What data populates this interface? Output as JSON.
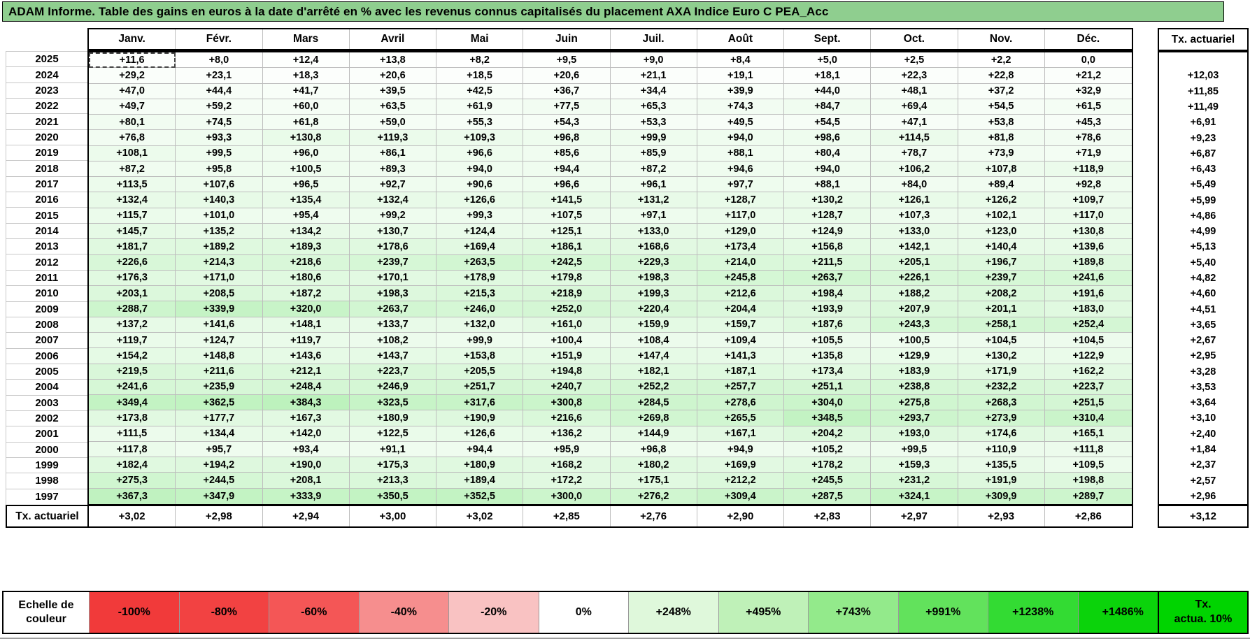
{
  "title": "ADAM Informe. Table des gains en euros à la date d'arrêté en % avec les revenus connus capitalisés du placement AXA Indice Euro C PEA_Acc",
  "colors": {
    "title_bg": "#8FCE8F",
    "grid_line": "#BDBDBD",
    "cell_scale_max_green": "#00CC00",
    "legend_tx_bg": "#00D400"
  },
  "table": {
    "month_headers": [
      "Janv.",
      "Févr.",
      "Mars",
      "Avril",
      "Mai",
      "Juin",
      "Juil.",
      "Août",
      "Sept.",
      "Oct.",
      "Nov.",
      "Déc."
    ],
    "tx_header": "Tx. actuariel",
    "footer_label": "Tx. actuariel",
    "scale_max_value": 1486,
    "selected_cell": {
      "year": "2025",
      "month": "Janv."
    },
    "rows": [
      {
        "year": "2025",
        "values": [
          "+11,6",
          "+8,0",
          "+12,4",
          "+13,8",
          "+8,2",
          "+9,5",
          "+9,0",
          "+8,4",
          "+5,0",
          "+2,5",
          "+2,2",
          "0,0"
        ],
        "tx": ""
      },
      {
        "year": "2024",
        "values": [
          "+29,2",
          "+23,1",
          "+18,3",
          "+20,6",
          "+18,5",
          "+20,6",
          "+21,1",
          "+19,1",
          "+18,1",
          "+22,3",
          "+22,8",
          "+21,2"
        ],
        "tx": "+12,03"
      },
      {
        "year": "2023",
        "values": [
          "+47,0",
          "+44,4",
          "+41,7",
          "+39,5",
          "+42,5",
          "+36,7",
          "+34,4",
          "+39,9",
          "+44,0",
          "+48,1",
          "+37,2",
          "+32,9"
        ],
        "tx": "+11,85"
      },
      {
        "year": "2022",
        "values": [
          "+49,7",
          "+59,2",
          "+60,0",
          "+63,5",
          "+61,9",
          "+77,5",
          "+65,3",
          "+74,3",
          "+84,7",
          "+69,4",
          "+54,5",
          "+61,5"
        ],
        "tx": "+11,49"
      },
      {
        "year": "2021",
        "values": [
          "+80,1",
          "+74,5",
          "+61,8",
          "+59,0",
          "+55,3",
          "+54,3",
          "+53,3",
          "+49,5",
          "+54,5",
          "+47,1",
          "+53,8",
          "+45,3"
        ],
        "tx": "+6,91"
      },
      {
        "year": "2020",
        "values": [
          "+76,8",
          "+93,3",
          "+130,8",
          "+119,3",
          "+109,3",
          "+96,8",
          "+99,9",
          "+94,0",
          "+98,6",
          "+114,5",
          "+81,8",
          "+78,6"
        ],
        "tx": "+9,23"
      },
      {
        "year": "2019",
        "values": [
          "+108,1",
          "+99,5",
          "+96,0",
          "+86,1",
          "+96,6",
          "+85,6",
          "+85,9",
          "+88,1",
          "+80,4",
          "+78,7",
          "+73,9",
          "+71,9"
        ],
        "tx": "+6,87"
      },
      {
        "year": "2018",
        "values": [
          "+87,2",
          "+95,8",
          "+100,5",
          "+89,3",
          "+94,0",
          "+94,4",
          "+87,2",
          "+94,6",
          "+94,0",
          "+106,2",
          "+107,8",
          "+118,9"
        ],
        "tx": "+6,43"
      },
      {
        "year": "2017",
        "values": [
          "+113,5",
          "+107,6",
          "+96,5",
          "+92,7",
          "+90,6",
          "+96,6",
          "+96,1",
          "+97,7",
          "+88,1",
          "+84,0",
          "+89,4",
          "+92,8"
        ],
        "tx": "+5,49"
      },
      {
        "year": "2016",
        "values": [
          "+132,4",
          "+140,3",
          "+135,4",
          "+132,4",
          "+126,6",
          "+141,5",
          "+131,2",
          "+128,7",
          "+130,2",
          "+126,1",
          "+126,2",
          "+109,7"
        ],
        "tx": "+5,99"
      },
      {
        "year": "2015",
        "values": [
          "+115,7",
          "+101,0",
          "+95,4",
          "+99,2",
          "+99,3",
          "+107,5",
          "+97,1",
          "+117,0",
          "+128,7",
          "+107,3",
          "+102,1",
          "+117,0"
        ],
        "tx": "+4,86"
      },
      {
        "year": "2014",
        "values": [
          "+145,7",
          "+135,2",
          "+134,2",
          "+130,7",
          "+124,4",
          "+125,1",
          "+133,0",
          "+129,0",
          "+124,9",
          "+133,0",
          "+123,0",
          "+130,8"
        ],
        "tx": "+4,99"
      },
      {
        "year": "2013",
        "values": [
          "+181,7",
          "+189,2",
          "+189,3",
          "+178,6",
          "+169,4",
          "+186,1",
          "+168,6",
          "+173,4",
          "+156,8",
          "+142,1",
          "+140,4",
          "+139,6"
        ],
        "tx": "+5,13"
      },
      {
        "year": "2012",
        "values": [
          "+226,6",
          "+214,3",
          "+218,6",
          "+239,7",
          "+263,5",
          "+242,5",
          "+229,3",
          "+214,0",
          "+211,5",
          "+205,1",
          "+196,7",
          "+189,8"
        ],
        "tx": "+5,40"
      },
      {
        "year": "2011",
        "values": [
          "+176,3",
          "+171,0",
          "+180,6",
          "+170,1",
          "+178,9",
          "+179,8",
          "+198,3",
          "+245,8",
          "+263,7",
          "+226,1",
          "+239,7",
          "+241,6"
        ],
        "tx": "+4,82"
      },
      {
        "year": "2010",
        "values": [
          "+203,1",
          "+208,5",
          "+187,2",
          "+198,3",
          "+215,3",
          "+218,9",
          "+199,3",
          "+212,6",
          "+198,4",
          "+188,2",
          "+208,2",
          "+191,6"
        ],
        "tx": "+4,60"
      },
      {
        "year": "2009",
        "values": [
          "+288,7",
          "+339,9",
          "+320,0",
          "+263,7",
          "+246,0",
          "+252,0",
          "+220,4",
          "+204,4",
          "+193,9",
          "+207,9",
          "+201,1",
          "+183,0"
        ],
        "tx": "+4,51"
      },
      {
        "year": "2008",
        "values": [
          "+137,2",
          "+141,6",
          "+148,1",
          "+133,7",
          "+132,0",
          "+161,0",
          "+159,9",
          "+159,7",
          "+187,6",
          "+243,3",
          "+258,1",
          "+252,4"
        ],
        "tx": "+3,65"
      },
      {
        "year": "2007",
        "values": [
          "+119,7",
          "+124,7",
          "+119,7",
          "+108,2",
          "+99,9",
          "+100,4",
          "+108,4",
          "+109,4",
          "+105,5",
          "+100,5",
          "+104,5",
          "+104,5"
        ],
        "tx": "+2,67"
      },
      {
        "year": "2006",
        "values": [
          "+154,2",
          "+148,8",
          "+143,6",
          "+143,7",
          "+153,8",
          "+151,9",
          "+147,4",
          "+141,3",
          "+135,8",
          "+129,9",
          "+130,2",
          "+122,9"
        ],
        "tx": "+2,95"
      },
      {
        "year": "2005",
        "values": [
          "+219,5",
          "+211,6",
          "+212,1",
          "+223,7",
          "+205,5",
          "+194,8",
          "+182,1",
          "+187,1",
          "+173,4",
          "+183,9",
          "+171,9",
          "+162,2"
        ],
        "tx": "+3,28"
      },
      {
        "year": "2004",
        "values": [
          "+241,6",
          "+235,9",
          "+248,4",
          "+246,9",
          "+251,7",
          "+240,7",
          "+252,2",
          "+257,7",
          "+251,1",
          "+238,8",
          "+232,2",
          "+223,7"
        ],
        "tx": "+3,53"
      },
      {
        "year": "2003",
        "values": [
          "+349,4",
          "+362,5",
          "+384,3",
          "+323,5",
          "+317,6",
          "+300,8",
          "+284,5",
          "+278,6",
          "+304,0",
          "+275,8",
          "+268,3",
          "+251,5"
        ],
        "tx": "+3,64"
      },
      {
        "year": "2002",
        "values": [
          "+173,8",
          "+177,7",
          "+167,3",
          "+180,9",
          "+190,9",
          "+216,6",
          "+269,8",
          "+265,5",
          "+348,5",
          "+293,7",
          "+273,9",
          "+310,4"
        ],
        "tx": "+3,10"
      },
      {
        "year": "2001",
        "values": [
          "+111,5",
          "+134,4",
          "+142,0",
          "+122,5",
          "+126,6",
          "+136,2",
          "+144,9",
          "+167,1",
          "+204,2",
          "+193,0",
          "+174,6",
          "+165,1"
        ],
        "tx": "+2,40"
      },
      {
        "year": "2000",
        "values": [
          "+117,8",
          "+95,7",
          "+93,4",
          "+91,1",
          "+94,4",
          "+95,9",
          "+96,8",
          "+94,9",
          "+105,2",
          "+99,5",
          "+110,9",
          "+111,8"
        ],
        "tx": "+1,84"
      },
      {
        "year": "1999",
        "values": [
          "+182,4",
          "+194,2",
          "+190,0",
          "+175,3",
          "+180,9",
          "+168,2",
          "+180,2",
          "+169,9",
          "+178,2",
          "+159,3",
          "+135,5",
          "+109,5"
        ],
        "tx": "+2,37"
      },
      {
        "year": "1998",
        "values": [
          "+275,3",
          "+244,5",
          "+208,1",
          "+213,3",
          "+189,4",
          "+172,2",
          "+175,1",
          "+212,2",
          "+245,5",
          "+231,2",
          "+191,9",
          "+198,8"
        ],
        "tx": "+2,57"
      },
      {
        "year": "1997",
        "values": [
          "+367,3",
          "+347,9",
          "+333,9",
          "+350,5",
          "+352,5",
          "+300,0",
          "+276,2",
          "+309,4",
          "+287,5",
          "+324,1",
          "+309,9",
          "+289,7"
        ],
        "tx": "+2,96"
      }
    ],
    "footer_values": [
      "+3,02",
      "+2,98",
      "+2,94",
      "+3,00",
      "+3,02",
      "+2,85",
      "+2,76",
      "+2,90",
      "+2,83",
      "+2,97",
      "+2,93",
      "+2,86"
    ],
    "footer_tx": "+3,12"
  },
  "color_scale": {
    "label_line1": "Echelle de",
    "label_line2": "couleur",
    "blocks": [
      {
        "label": "-100%",
        "color": "#F13A3A"
      },
      {
        "label": "-80%",
        "color": "#F24242"
      },
      {
        "label": "-60%",
        "color": "#F45656"
      },
      {
        "label": "-40%",
        "color": "#F68E8E"
      },
      {
        "label": "-20%",
        "color": "#F9C2C2"
      },
      {
        "label": "0%",
        "color": "#FFFFFF"
      },
      {
        "label": "+248%",
        "color": "#DFF8DB"
      },
      {
        "label": "+495%",
        "color": "#BFF1B8"
      },
      {
        "label": "+743%",
        "color": "#93EA8B"
      },
      {
        "label": "+991%",
        "color": "#62E25C"
      },
      {
        "label": "+1238%",
        "color": "#33DB33"
      },
      {
        "label": "+1486%",
        "color": "#0BD30B"
      }
    ],
    "tx_box_line1": "Tx.",
    "tx_box_line2": "actua. 10%"
  }
}
